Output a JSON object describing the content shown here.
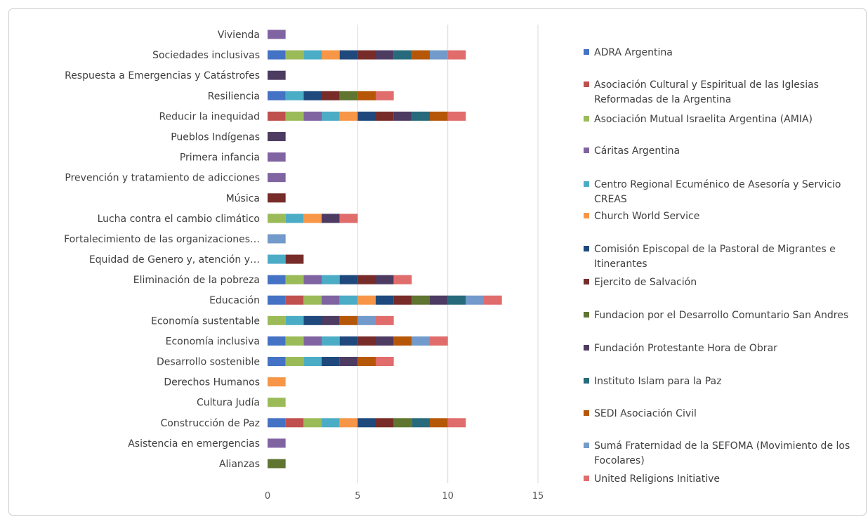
{
  "chart_data": {
    "type": "bar",
    "orientation": "horizontal",
    "stacked": true,
    "title": "",
    "xlabel": "",
    "ylabel": "",
    "xlim": [
      0,
      15
    ],
    "xticks": [
      0,
      5,
      10,
      15
    ],
    "grid": "vertical",
    "legend_position": "right",
    "categories": [
      "Vivienda",
      "Sociedades inclusivas",
      "Respuesta a Emergencias y Catástrofes",
      "Resiliencia",
      "Reducir la inequidad",
      "Pueblos Indígenas",
      "Primera infancia",
      "Prevención y tratamiento de adicciones",
      "Música",
      "Lucha contra el cambio climático",
      "Fortalecimiento de las organizaciones…",
      "Equidad de Genero y, atención y…",
      "Eliminación de la pobreza",
      "Educación",
      "Economía sustentable",
      "Economía inclusiva",
      "Desarrollo sostenible",
      "Derechos Humanos",
      "Cultura Judía",
      "Construcción de Paz",
      "Asistencia en emergencias",
      "Alianzas"
    ],
    "series": [
      {
        "name": "ADRA Argentina",
        "color": "#4472c4",
        "values": [
          0,
          1,
          0,
          1,
          0,
          0,
          0,
          0,
          0,
          0,
          0,
          0,
          1,
          1,
          0,
          1,
          1,
          0,
          0,
          1,
          0,
          0
        ]
      },
      {
        "name": "Asociación Cultural y Espiritual de las Iglesias Reformadas de la Argentina",
        "color": "#c0504d",
        "values": [
          0,
          0,
          0,
          0,
          1,
          0,
          0,
          0,
          0,
          0,
          0,
          0,
          0,
          1,
          0,
          0,
          0,
          0,
          0,
          1,
          0,
          0
        ]
      },
      {
        "name": "Asociación Mutual Israelita Argentina (AMIA)",
        "color": "#9bbb59",
        "values": [
          0,
          1,
          0,
          0,
          1,
          0,
          0,
          0,
          0,
          1,
          0,
          0,
          1,
          1,
          1,
          1,
          1,
          0,
          1,
          1,
          0,
          0
        ]
      },
      {
        "name": "Cáritas Argentina",
        "color": "#8064a2",
        "values": [
          1,
          0,
          0,
          0,
          1,
          0,
          1,
          1,
          0,
          0,
          0,
          0,
          1,
          1,
          0,
          1,
          0,
          0,
          0,
          0,
          1,
          0
        ]
      },
      {
        "name": "Centro Regional Ecuménico de Asesoría y Servicio CREAS",
        "color": "#4bacc6",
        "values": [
          0,
          1,
          0,
          1,
          1,
          0,
          0,
          0,
          0,
          1,
          0,
          1,
          1,
          1,
          1,
          1,
          1,
          0,
          0,
          1,
          0,
          0
        ]
      },
      {
        "name": "Church World Service",
        "color": "#f79646",
        "values": [
          0,
          1,
          0,
          0,
          1,
          0,
          0,
          0,
          0,
          1,
          0,
          0,
          0,
          1,
          0,
          0,
          0,
          1,
          0,
          1,
          0,
          0
        ]
      },
      {
        "name": "Comisión Episcopal de la Pastoral de Migrantes e Itinerantes",
        "color": "#1f497d",
        "values": [
          0,
          1,
          0,
          1,
          1,
          0,
          0,
          0,
          0,
          0,
          0,
          0,
          1,
          1,
          1,
          1,
          1,
          0,
          0,
          1,
          0,
          0
        ]
      },
      {
        "name": "Ejercito de Salvación",
        "color": "#772c2a",
        "values": [
          0,
          1,
          0,
          1,
          1,
          0,
          0,
          0,
          1,
          0,
          0,
          1,
          1,
          1,
          0,
          1,
          0,
          0,
          0,
          1,
          0,
          0
        ]
      },
      {
        "name": "Fundacion por el Desarrollo Comuntario San Andres",
        "color": "#5f7530",
        "values": [
          0,
          0,
          0,
          1,
          0,
          0,
          0,
          0,
          0,
          0,
          0,
          0,
          0,
          1,
          0,
          0,
          0,
          0,
          0,
          1,
          0,
          1
        ]
      },
      {
        "name": "Fundación Protestante Hora de Obrar",
        "color": "#4d3b62",
        "values": [
          0,
          1,
          1,
          0,
          1,
          1,
          0,
          0,
          0,
          1,
          0,
          0,
          1,
          1,
          1,
          1,
          1,
          0,
          0,
          0,
          0,
          0
        ]
      },
      {
        "name": "Instituto Islam para la Paz",
        "color": "#276a7c",
        "values": [
          0,
          1,
          0,
          0,
          1,
          0,
          0,
          0,
          0,
          0,
          0,
          0,
          0,
          1,
          0,
          0,
          0,
          0,
          0,
          1,
          0,
          0
        ]
      },
      {
        "name": "SEDI Asociación Civil",
        "color": "#b65708",
        "values": [
          0,
          1,
          0,
          1,
          1,
          0,
          0,
          0,
          0,
          0,
          0,
          0,
          0,
          0,
          1,
          1,
          1,
          0,
          0,
          1,
          0,
          0
        ]
      },
      {
        "name": "Sumá Fraternidad de la SEFOMA (Movimiento de los Focolares)",
        "color": "#729aca",
        "values": [
          0,
          1,
          0,
          0,
          0,
          0,
          0,
          0,
          0,
          0,
          1,
          0,
          0,
          1,
          1,
          1,
          0,
          0,
          0,
          0,
          0,
          0
        ]
      },
      {
        "name": "United Religions Initiative",
        "color": "#e06c6c",
        "values": [
          0,
          1,
          0,
          1,
          1,
          0,
          0,
          0,
          0,
          1,
          0,
          0,
          1,
          1,
          1,
          1,
          1,
          0,
          0,
          1,
          0,
          0
        ]
      }
    ]
  }
}
